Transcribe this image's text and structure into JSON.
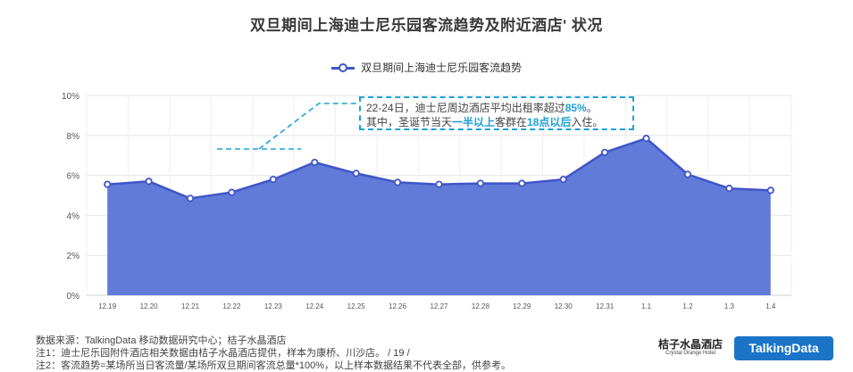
{
  "chart_data": {
    "type": "area",
    "title": "双旦期间上海迪士尼乐园客流趋势及附近酒店' 状况",
    "categories": [
      "12.19",
      "12.20",
      "12.21",
      "12.22",
      "12.23",
      "12.24",
      "12.25",
      "12.26",
      "12.27",
      "12.28",
      "12.29",
      "12.30",
      "12.31",
      "1.1",
      "1.2",
      "1.3",
      "1.4"
    ],
    "series": [
      {
        "name": "双旦期间上海迪士尼乐园客流趋势",
        "values": [
          5.55,
          5.7,
          4.85,
          5.15,
          5.8,
          6.65,
          6.1,
          5.65,
          5.55,
          5.6,
          5.6,
          5.8,
          7.15,
          7.85,
          6.05,
          5.35,
          5.25
        ]
      }
    ],
    "yticks": [
      "0%",
      "2%",
      "4%",
      "6%",
      "8%",
      "10%"
    ],
    "ylim": [
      0,
      10
    ],
    "grid": true,
    "legend": "top-center",
    "colors": {
      "line": "#3f56c8",
      "fill": "#5a73d6",
      "callout": "#1aa3d8"
    }
  },
  "annotation": {
    "line1_pre": "22-24日，迪士尼周边酒店平均出租率超过",
    "line1_hl": "85%",
    "line1_post": "。",
    "line2_pre": "其中，圣诞节当天",
    "line2_hl1": "一半以上",
    "line2_mid": "客群在",
    "line2_hl2": "18点以后",
    "line2_post": "入住。"
  },
  "footer": {
    "source": "数据来源：TalkingData 移动数据研究中心；桔子水晶酒店",
    "note1": "注1：迪士尼乐园附件酒店相关数据由桔子水晶酒店提供，样本为康桥、川沙店。",
    "page": "/ 19 /",
    "note2": "注2：客流趋势=某场所当日客流量/某场所双旦期间客流总量*100%，以上样本数据结果不代表全部，供参考。"
  },
  "brands": {
    "orange_cn": "桔子水晶酒店",
    "orange_en": "Crystal Orange Hotel",
    "talkingdata": "TalkingData"
  }
}
